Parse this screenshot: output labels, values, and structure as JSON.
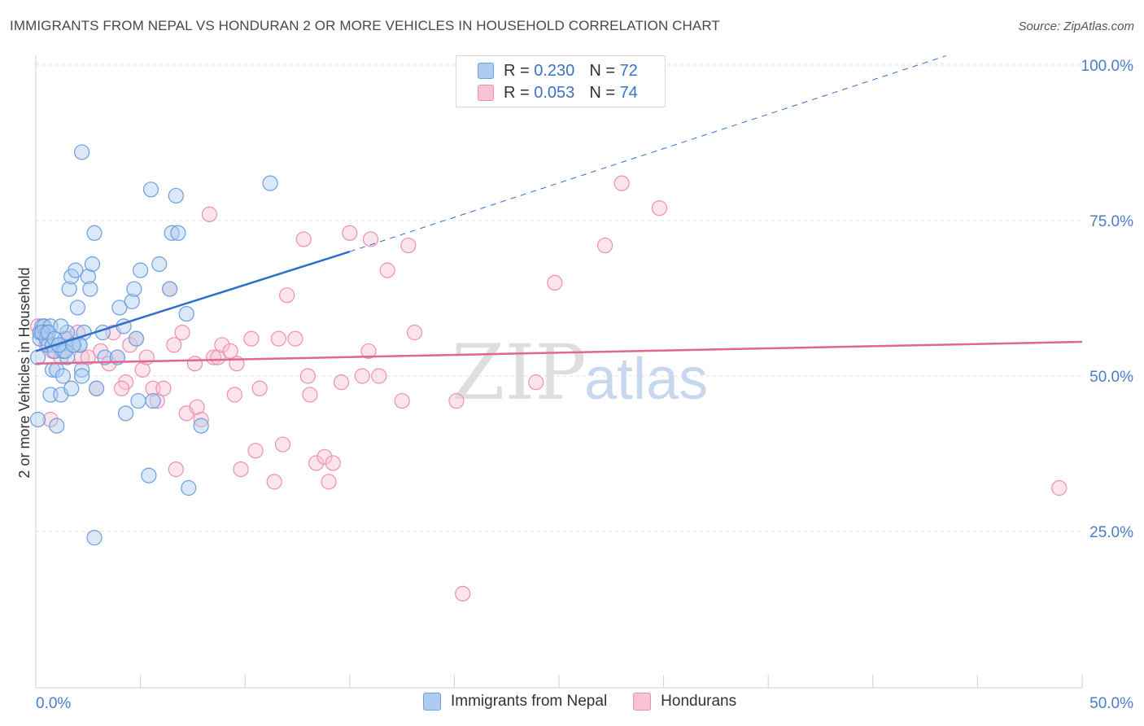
{
  "title": "IMMIGRANTS FROM NEPAL VS HONDURAN 2 OR MORE VEHICLES IN HOUSEHOLD CORRELATION CHART",
  "source": "Source: ZipAtlas.com",
  "watermark": {
    "zip": "ZIP",
    "atlas": "atlas"
  },
  "legend": {
    "series1": {
      "r_label": "R = ",
      "r_value": "0.230",
      "n_label": "N = ",
      "n_value": "72"
    },
    "series2": {
      "r_label": "R = ",
      "r_value": "0.053",
      "n_label": "N = ",
      "n_value": "74"
    }
  },
  "colors": {
    "blue": "#6a9fe0",
    "blue_fill": "#aecbf0",
    "blue_line": "#2f6fcc",
    "pink": "#ee8fb0",
    "pink_fill": "#f7c3d5",
    "pink_line": "#e0678f"
  },
  "chart_data": {
    "type": "scatter",
    "title": "IMMIGRANTS FROM NEPAL VS HONDURAN 2 OR MORE VEHICLES IN HOUSEHOLD CORRELATION CHART",
    "xlabel": "",
    "ylabel": "2 or more Vehicles in Household",
    "xlim": [
      0,
      50
    ],
    "ylim": [
      0,
      105
    ],
    "x_tick_labels": [
      "0.0%",
      "50.0%"
    ],
    "y_ticks": [
      25,
      50,
      75,
      100
    ],
    "y_tick_labels": [
      "25.0%",
      "50.0%",
      "75.0%",
      "100.0%"
    ],
    "series": [
      {
        "name": "Immigrants from Nepal",
        "trend": {
          "x0": 0,
          "y0": 54.0,
          "x1": 15.0,
          "y1": 70.0,
          "dash_x1": 43.5,
          "dash_y1": 101.5
        },
        "points": [
          [
            0.1,
            53
          ],
          [
            0.1,
            43
          ],
          [
            0.2,
            56
          ],
          [
            0.2,
            57
          ],
          [
            0.3,
            58
          ],
          [
            0.3,
            57
          ],
          [
            0.4,
            58
          ],
          [
            0.5,
            56
          ],
          [
            0.5,
            57
          ],
          [
            0.6,
            55
          ],
          [
            0.7,
            58
          ],
          [
            0.7,
            47
          ],
          [
            0.8,
            55
          ],
          [
            0.8,
            51
          ],
          [
            0.9,
            54
          ],
          [
            1.0,
            51
          ],
          [
            1.0,
            42
          ],
          [
            1.1,
            55
          ],
          [
            1.2,
            47
          ],
          [
            1.3,
            54
          ],
          [
            1.3,
            50
          ],
          [
            1.4,
            56
          ],
          [
            1.5,
            57
          ],
          [
            1.5,
            53
          ],
          [
            1.6,
            64
          ],
          [
            1.7,
            66
          ],
          [
            1.7,
            48
          ],
          [
            1.8,
            55
          ],
          [
            1.9,
            67
          ],
          [
            2.0,
            61
          ],
          [
            2.1,
            55
          ],
          [
            2.2,
            51
          ],
          [
            2.2,
            50
          ],
          [
            2.3,
            57
          ],
          [
            2.5,
            66
          ],
          [
            2.6,
            64
          ],
          [
            2.7,
            68
          ],
          [
            2.8,
            73
          ],
          [
            2.9,
            48
          ],
          [
            2.8,
            24
          ],
          [
            3.2,
            57
          ],
          [
            3.3,
            53
          ],
          [
            3.9,
            53
          ],
          [
            4.0,
            61
          ],
          [
            4.2,
            58
          ],
          [
            4.3,
            44
          ],
          [
            4.6,
            62
          ],
          [
            4.7,
            64
          ],
          [
            4.8,
            56
          ],
          [
            4.9,
            46
          ],
          [
            5.0,
            67
          ],
          [
            5.4,
            34
          ],
          [
            5.5,
            80
          ],
          [
            5.6,
            46
          ],
          [
            5.9,
            68
          ],
          [
            6.4,
            64
          ],
          [
            6.5,
            73
          ],
          [
            6.7,
            79
          ],
          [
            6.8,
            73
          ],
          [
            7.2,
            60
          ],
          [
            7.3,
            32
          ],
          [
            7.9,
            42
          ],
          [
            2.2,
            86
          ],
          [
            11.2,
            81
          ],
          [
            0.3,
            57
          ],
          [
            0.6,
            57
          ],
          [
            1.4,
            54
          ],
          [
            2.1,
            55
          ],
          [
            0.9,
            56
          ],
          [
            1.1,
            55
          ],
          [
            1.2,
            58
          ],
          [
            1.8,
            55
          ]
        ]
      },
      {
        "name": "Hondurans",
        "trend": {
          "x0": 0,
          "y0": 52.0,
          "x1": 50,
          "y1": 55.5
        },
        "points": [
          [
            0.1,
            58
          ],
          [
            0.2,
            57
          ],
          [
            0.4,
            58
          ],
          [
            0.5,
            55
          ],
          [
            0.7,
            43
          ],
          [
            0.8,
            54
          ],
          [
            1.2,
            53
          ],
          [
            1.6,
            56
          ],
          [
            2.0,
            57
          ],
          [
            2.2,
            53
          ],
          [
            2.5,
            53
          ],
          [
            2.9,
            48
          ],
          [
            3.1,
            54
          ],
          [
            3.5,
            52
          ],
          [
            3.7,
            57
          ],
          [
            3.9,
            53
          ],
          [
            4.3,
            49
          ],
          [
            4.5,
            55
          ],
          [
            4.8,
            56
          ],
          [
            5.1,
            51
          ],
          [
            5.3,
            53
          ],
          [
            5.6,
            48
          ],
          [
            5.8,
            46
          ],
          [
            6.1,
            48
          ],
          [
            6.4,
            64
          ],
          [
            6.6,
            55
          ],
          [
            6.7,
            35
          ],
          [
            7.0,
            57
          ],
          [
            7.2,
            44
          ],
          [
            7.6,
            52
          ],
          [
            7.7,
            45
          ],
          [
            7.9,
            43
          ],
          [
            8.3,
            76
          ],
          [
            8.5,
            53
          ],
          [
            8.7,
            53
          ],
          [
            8.9,
            55
          ],
          [
            9.3,
            54
          ],
          [
            9.5,
            47
          ],
          [
            9.6,
            52
          ],
          [
            9.8,
            35
          ],
          [
            10.3,
            56
          ],
          [
            10.5,
            38
          ],
          [
            10.7,
            48
          ],
          [
            11.4,
            33
          ],
          [
            11.6,
            56
          ],
          [
            11.8,
            39
          ],
          [
            12.0,
            63
          ],
          [
            12.4,
            56
          ],
          [
            12.8,
            72
          ],
          [
            13.0,
            50
          ],
          [
            13.1,
            47
          ],
          [
            13.4,
            36
          ],
          [
            13.8,
            37
          ],
          [
            14.0,
            33
          ],
          [
            14.2,
            36
          ],
          [
            14.6,
            49
          ],
          [
            15.0,
            73
          ],
          [
            15.6,
            50
          ],
          [
            15.9,
            54
          ],
          [
            16.0,
            72
          ],
          [
            16.4,
            50
          ],
          [
            16.8,
            67
          ],
          [
            17.5,
            46
          ],
          [
            17.8,
            71
          ],
          [
            18.1,
            57
          ],
          [
            20.1,
            46
          ],
          [
            20.4,
            15
          ],
          [
            23.9,
            49
          ],
          [
            24.8,
            65
          ],
          [
            27.2,
            71
          ],
          [
            28.0,
            81
          ],
          [
            29.8,
            77
          ],
          [
            48.9,
            32
          ],
          [
            4.1,
            48
          ]
        ]
      }
    ]
  },
  "bottom_legend": {
    "item1": "Immigrants from Nepal",
    "item2": "Hondurans"
  }
}
